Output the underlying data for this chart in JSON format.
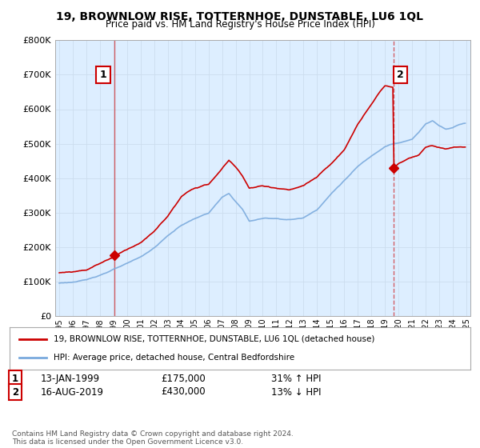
{
  "title": "19, BROWNLOW RISE, TOTTERNHOE, DUNSTABLE, LU6 1QL",
  "subtitle": "Price paid vs. HM Land Registry's House Price Index (HPI)",
  "red_label": "19, BROWNLOW RISE, TOTTERNHOE, DUNSTABLE, LU6 1QL (detached house)",
  "blue_label": "HPI: Average price, detached house, Central Bedfordshire",
  "point1_date": "13-JAN-1999",
  "point1_price": "£175,000",
  "point1_hpi": "31% ↑ HPI",
  "point2_date": "16-AUG-2019",
  "point2_price": "£430,000",
  "point2_hpi": "13% ↓ HPI",
  "footer": "Contains HM Land Registry data © Crown copyright and database right 2024.\nThis data is licensed under the Open Government Licence v3.0.",
  "ylim": [
    0,
    800000
  ],
  "yticks": [
    0,
    100000,
    200000,
    300000,
    400000,
    500000,
    600000,
    700000,
    800000
  ],
  "red_color": "#cc0000",
  "blue_color": "#7aaadd",
  "vline_color": "#cc0000",
  "background_color": "#ffffff",
  "grid_color": "#ccddee",
  "chart_bg": "#ddeeff"
}
